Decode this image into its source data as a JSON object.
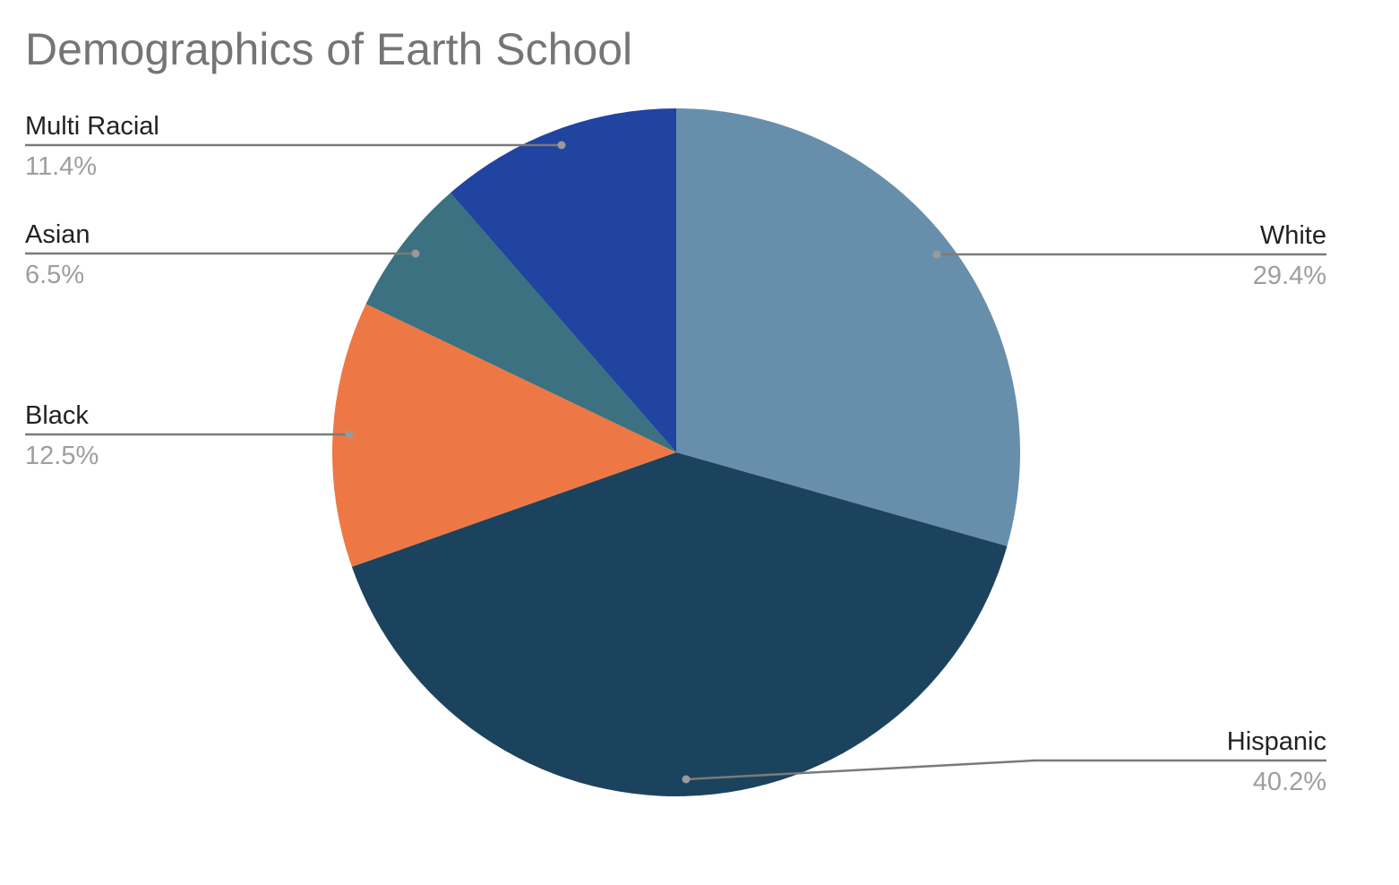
{
  "chart_data": {
    "type": "pie",
    "title": "Demographics of Earth School",
    "slices": [
      {
        "label": "White",
        "value": 29.4,
        "pct_text": "29.4%",
        "color": "#678fab"
      },
      {
        "label": "Hispanic",
        "value": 40.2,
        "pct_text": "40.2%",
        "color": "#1c435d"
      },
      {
        "label": "Black",
        "value": 12.5,
        "pct_text": "12.5%",
        "color": "#ed7845"
      },
      {
        "label": "Asian",
        "value": 6.5,
        "pct_text": "6.5%",
        "color": "#3b7180"
      },
      {
        "label": "Multi Racial",
        "value": 11.4,
        "pct_text": "11.4%",
        "color": "#2044a0"
      }
    ],
    "legend": "none",
    "start_angle": "12 o'clock",
    "direction": "clockwise"
  },
  "colors": {
    "leader_line": "#7a7a7a",
    "title_text": "#757575",
    "label_text": "#222222",
    "percent_text": "#9e9e9e"
  }
}
